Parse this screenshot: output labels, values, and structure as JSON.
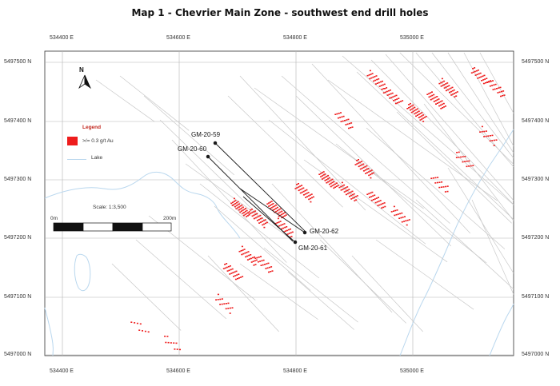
{
  "title": "Map 1 - Chevrier Main Zone - southwest end drill holes",
  "eastings": [
    "534400 E",
    "534600 E",
    "534800 E",
    "535000 E"
  ],
  "northings": [
    "5497500 N",
    "5497400 N",
    "5497300 N",
    "5497200 N",
    "5497100 N",
    "5497000 N"
  ],
  "north_arrow": "N",
  "legend": {
    "title": "Legend",
    "gold_label": ">/= 0.3 g/t Au",
    "lake_label": "Lake"
  },
  "scale": {
    "text": "Scale: 1:3,500",
    "start": "0m",
    "end": "200m"
  },
  "drill_holes": [
    "GM-20-59",
    "GM-20-60",
    "GM-20-62",
    "GM-20-61"
  ],
  "colors": {
    "gold": "#ee1c1c",
    "lake": "#b9d7ee",
    "grid": "#b4b4b4",
    "hole_trace": "#c8c8c8"
  }
}
